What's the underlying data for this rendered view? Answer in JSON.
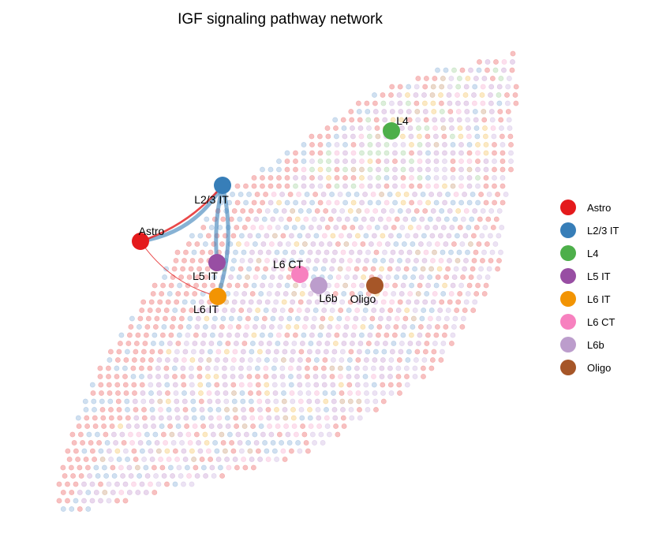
{
  "chart_data": {
    "type": "network",
    "title": "IGF signaling pathway network",
    "cell_groups": [
      {
        "name": "Astro",
        "color": "#E41A1C"
      },
      {
        "name": "L2/3 IT",
        "color": "#377EB8"
      },
      {
        "name": "L4",
        "color": "#4DAF4A"
      },
      {
        "name": "L5 IT",
        "color": "#984EA3"
      },
      {
        "name": "L6 IT",
        "color": "#F29403"
      },
      {
        "name": "L6 CT",
        "color": "#F781BF"
      },
      {
        "name": "L6b",
        "color": "#BC9DCC"
      },
      {
        "name": "Oligo",
        "color": "#A65628"
      }
    ],
    "edges": [
      {
        "source": "L2/3 IT",
        "target": "Astro",
        "color": "#377EB8",
        "strength": "strong"
      },
      {
        "source": "Astro",
        "target": "L2/3 IT",
        "color": "#E41A1C",
        "strength": "medium"
      },
      {
        "source": "L2/3 IT",
        "target": "L5 IT",
        "color": "#377EB8",
        "strength": "strong"
      },
      {
        "source": "L2/3 IT",
        "target": "L6 IT",
        "color": "#377EB8",
        "strength": "strong"
      },
      {
        "source": "Astro",
        "target": "L6 IT",
        "color": "#E41A1C",
        "strength": "weak"
      }
    ],
    "legend_position": "right",
    "background": "spatial spots colored by cell group"
  }
}
